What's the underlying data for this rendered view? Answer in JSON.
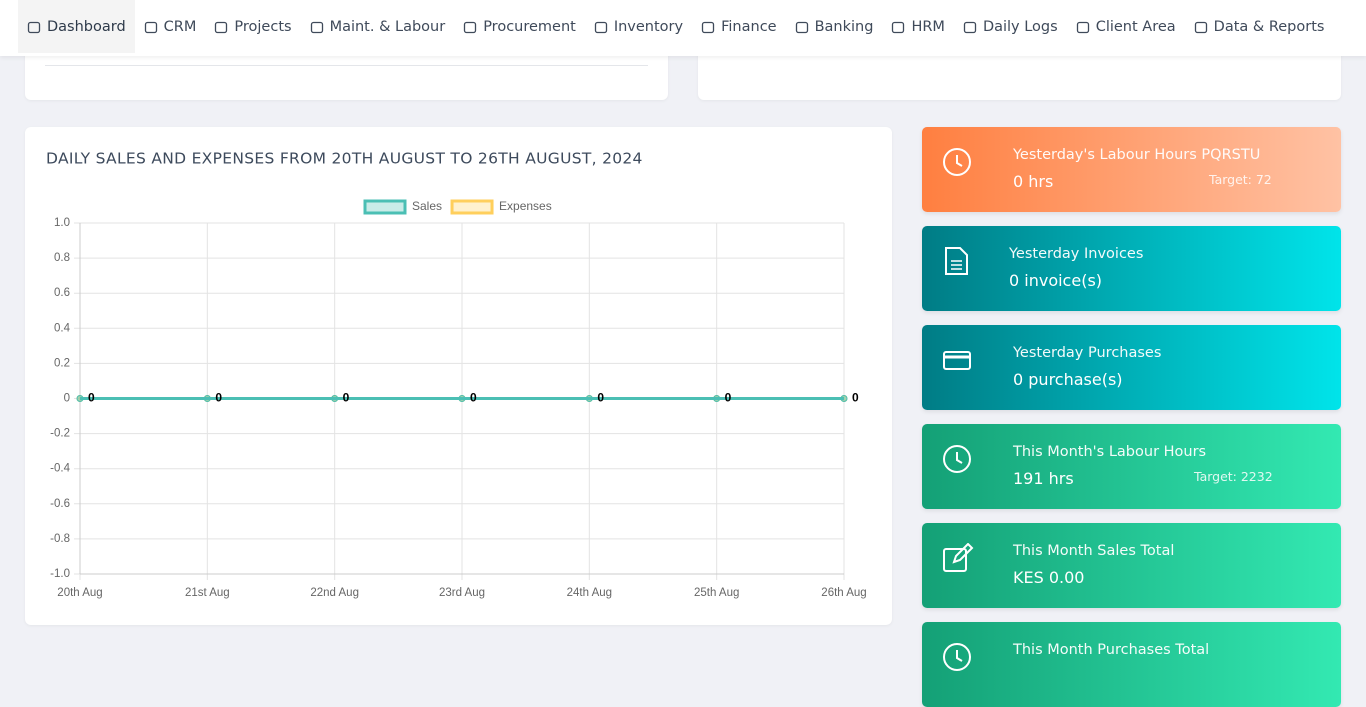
{
  "nav": [
    "Dashboard",
    "CRM",
    "Projects",
    "Maint. & Labour",
    "Procurement",
    "Inventory",
    "Finance",
    "Banking",
    "HRM",
    "Daily Logs",
    "Client Area",
    "Data & Reports"
  ],
  "chart_data": {
    "type": "line",
    "title": "DAILY SALES AND EXPENSES FROM 20TH AUGUST TO 26TH AUGUST, 2024",
    "categories": [
      "20th Aug",
      "21st Aug",
      "22nd Aug",
      "23rd Aug",
      "24th Aug",
      "25th Aug",
      "26th Aug"
    ],
    "series": [
      {
        "name": "Sales",
        "color": "#4bbfb4",
        "values": [
          0,
          0,
          0,
          0,
          0,
          0,
          0
        ]
      },
      {
        "name": "Expenses",
        "color": "#ffcf5c",
        "values": [
          0,
          0,
          0,
          0,
          0,
          0,
          0
        ]
      }
    ],
    "ylim": [
      -1,
      1
    ],
    "yticks": [
      {
        "value": -1,
        "label": "-1.0"
      },
      -0.8,
      -0.6,
      -0.4,
      -0.2,
      0,
      0.2,
      0.4,
      0.6,
      0.8,
      {
        "value": 1,
        "label": "1.0"
      }
    ],
    "grid": true,
    "legend": "top"
  },
  "cards": [
    {
      "title": "Yesterday's Labour Hours PQRSTU",
      "value": "0 hrs",
      "target": "Target: 72"
    },
    {
      "title": "Yesterday Invoices",
      "value": "0 invoice(s)"
    },
    {
      "title": "Yesterday Purchases",
      "value": "0 purchase(s)"
    },
    {
      "title": "This Month's Labour Hours",
      "value": "191 hrs",
      "target": "Target: 2232"
    },
    {
      "title": "This Month Sales Total",
      "value": "KES 0.00"
    },
    {
      "title": "This Month Purchases Total"
    }
  ]
}
